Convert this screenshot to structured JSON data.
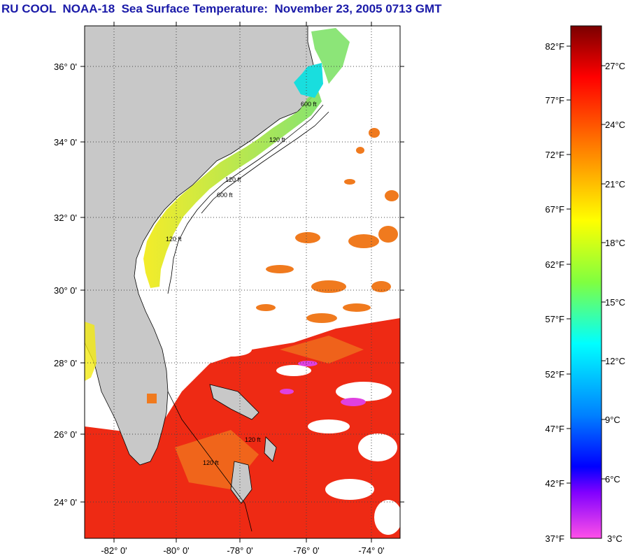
{
  "header": {
    "title": "RU COOL  NOAA-18  Sea Surface Temperature:  November 23, 2005 0713 GMT"
  },
  "map": {
    "lat_ticks": [
      "36° 0'",
      "34° 0'",
      "32° 0'",
      "30° 0'",
      "28° 0'",
      "26° 0'",
      "24° 0'"
    ],
    "lon_ticks": [
      "-82° 0'",
      "-80° 0'",
      "-78° 0'",
      "-76° 0'",
      "-74° 0'"
    ],
    "contour_labels": [
      "600 ft",
      "120 ft",
      "120 ft",
      "600 ft",
      "120 ft",
      "120 ft",
      "120 ft"
    ],
    "colors": {
      "land": "#c8c8c8",
      "cloud": "#ffffff",
      "warm": "#ee2a14",
      "orange": "#f07a1e",
      "yellow": "#f2ea12",
      "green": "#78e060",
      "cyan": "#19dede",
      "magenta": "#e040e0"
    }
  },
  "colorbar": {
    "fahrenheit_labels": [
      "82°F",
      "77°F",
      "72°F",
      "67°F",
      "62°F",
      "57°F",
      "52°F",
      "47°F",
      "42°F",
      "37°F"
    ],
    "celsius_labels": [
      "27°C",
      "24°C",
      "21°C",
      "18°C",
      "15°C",
      "12°C",
      "9°C",
      "6°C",
      "3°C"
    ],
    "gradient_stops": [
      "#7a0000",
      "#ff0000",
      "#ff8000",
      "#ffff00",
      "#80ff40",
      "#00ffff",
      "#0080ff",
      "#0000ff",
      "#8000ff",
      "#ff40ff",
      "#ff60e0"
    ]
  }
}
